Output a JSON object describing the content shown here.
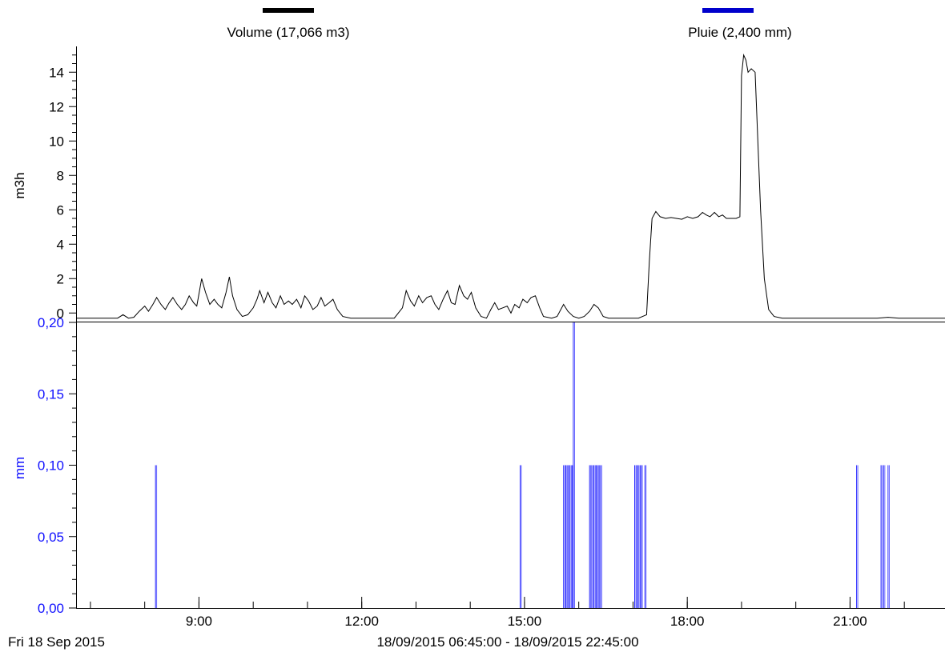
{
  "legend": [
    {
      "label": "Volume (17,066 m3)",
      "color": "#000000"
    },
    {
      "label": "Pluie (2,400 mm)",
      "color": "#0000cc"
    }
  ],
  "footer": {
    "date": "Fri 18 Sep 2015",
    "range": "18/09/2015 06:45:00 - 18/09/2015 22:45:00"
  },
  "chart_data": [
    {
      "type": "line",
      "series_name": "Volume (17,066 m3)",
      "ylabel": "m3h",
      "ylim": [
        -0.5,
        15.5
      ],
      "yticks": [
        0,
        2,
        4,
        6,
        8,
        10,
        12,
        14
      ],
      "ytick_labels": [
        "0",
        "2",
        "4",
        "6",
        "8",
        "10",
        "12",
        "14"
      ],
      "x_unit": "hour of day",
      "xlim": [
        6.75,
        22.75
      ],
      "color": "#000000",
      "points": [
        [
          6.75,
          -0.3
        ],
        [
          7.5,
          -0.3
        ],
        [
          7.6,
          -0.1
        ],
        [
          7.7,
          -0.3
        ],
        [
          7.8,
          -0.25
        ],
        [
          7.9,
          0.1
        ],
        [
          8.0,
          0.4
        ],
        [
          8.07,
          0.1
        ],
        [
          8.15,
          0.5
        ],
        [
          8.22,
          0.9
        ],
        [
          8.3,
          0.5
        ],
        [
          8.38,
          0.2
        ],
        [
          8.45,
          0.6
        ],
        [
          8.52,
          0.9
        ],
        [
          8.6,
          0.5
        ],
        [
          8.68,
          0.2
        ],
        [
          8.75,
          0.5
        ],
        [
          8.82,
          1.0
        ],
        [
          8.9,
          0.6
        ],
        [
          8.96,
          0.4
        ],
        [
          9.0,
          1.1
        ],
        [
          9.05,
          2.0
        ],
        [
          9.12,
          1.2
        ],
        [
          9.2,
          0.5
        ],
        [
          9.28,
          0.8
        ],
        [
          9.35,
          0.5
        ],
        [
          9.42,
          0.3
        ],
        [
          9.5,
          1.2
        ],
        [
          9.56,
          2.1
        ],
        [
          9.62,
          1.0
        ],
        [
          9.7,
          0.2
        ],
        [
          9.8,
          -0.2
        ],
        [
          9.9,
          -0.1
        ],
        [
          10.0,
          0.3
        ],
        [
          10.07,
          0.8
        ],
        [
          10.12,
          1.3
        ],
        [
          10.2,
          0.6
        ],
        [
          10.27,
          1.2
        ],
        [
          10.35,
          0.6
        ],
        [
          10.42,
          0.3
        ],
        [
          10.5,
          1.0
        ],
        [
          10.57,
          0.5
        ],
        [
          10.65,
          0.7
        ],
        [
          10.72,
          0.5
        ],
        [
          10.8,
          0.8
        ],
        [
          10.88,
          0.3
        ],
        [
          10.95,
          1.0
        ],
        [
          11.02,
          0.7
        ],
        [
          11.1,
          0.2
        ],
        [
          11.18,
          0.4
        ],
        [
          11.25,
          0.9
        ],
        [
          11.32,
          0.4
        ],
        [
          11.4,
          0.6
        ],
        [
          11.47,
          0.8
        ],
        [
          11.55,
          0.2
        ],
        [
          11.65,
          -0.2
        ],
        [
          11.8,
          -0.3
        ],
        [
          12.6,
          -0.3
        ],
        [
          12.75,
          0.3
        ],
        [
          12.82,
          1.3
        ],
        [
          12.9,
          0.7
        ],
        [
          12.97,
          0.4
        ],
        [
          13.05,
          1.0
        ],
        [
          13.12,
          0.6
        ],
        [
          13.2,
          0.9
        ],
        [
          13.28,
          1.0
        ],
        [
          13.35,
          0.5
        ],
        [
          13.42,
          0.2
        ],
        [
          13.5,
          0.8
        ],
        [
          13.58,
          1.3
        ],
        [
          13.65,
          0.6
        ],
        [
          13.72,
          0.5
        ],
        [
          13.8,
          1.6
        ],
        [
          13.88,
          1.0
        ],
        [
          13.95,
          0.8
        ],
        [
          14.02,
          1.2
        ],
        [
          14.1,
          0.3
        ],
        [
          14.2,
          -0.2
        ],
        [
          14.3,
          -0.3
        ],
        [
          14.38,
          0.2
        ],
        [
          14.45,
          0.6
        ],
        [
          14.52,
          0.2
        ],
        [
          14.6,
          0.3
        ],
        [
          14.68,
          0.4
        ],
        [
          14.75,
          0.0
        ],
        [
          14.82,
          0.5
        ],
        [
          14.9,
          0.3
        ],
        [
          14.97,
          0.8
        ],
        [
          15.05,
          0.6
        ],
        [
          15.12,
          0.9
        ],
        [
          15.2,
          1.0
        ],
        [
          15.28,
          0.3
        ],
        [
          15.35,
          -0.2
        ],
        [
          15.5,
          -0.3
        ],
        [
          15.6,
          -0.2
        ],
        [
          15.72,
          0.5
        ],
        [
          15.8,
          0.1
        ],
        [
          15.9,
          -0.2
        ],
        [
          16.0,
          -0.3
        ],
        [
          16.1,
          -0.2
        ],
        [
          16.2,
          0.1
        ],
        [
          16.28,
          0.5
        ],
        [
          16.36,
          0.3
        ],
        [
          16.45,
          -0.2
        ],
        [
          16.55,
          -0.3
        ],
        [
          17.1,
          -0.3
        ],
        [
          17.25,
          -0.1
        ],
        [
          17.3,
          3.0
        ],
        [
          17.35,
          5.5
        ],
        [
          17.42,
          5.9
        ],
        [
          17.5,
          5.6
        ],
        [
          17.6,
          5.5
        ],
        [
          17.7,
          5.55
        ],
        [
          17.8,
          5.5
        ],
        [
          17.9,
          5.45
        ],
        [
          18.0,
          5.6
        ],
        [
          18.1,
          5.5
        ],
        [
          18.2,
          5.6
        ],
        [
          18.28,
          5.85
        ],
        [
          18.35,
          5.7
        ],
        [
          18.42,
          5.6
        ],
        [
          18.5,
          5.85
        ],
        [
          18.58,
          5.6
        ],
        [
          18.65,
          5.7
        ],
        [
          18.72,
          5.5
        ],
        [
          18.8,
          5.5
        ],
        [
          18.9,
          5.5
        ],
        [
          18.97,
          5.6
        ],
        [
          19.0,
          13.8
        ],
        [
          19.04,
          15.0
        ],
        [
          19.08,
          14.7
        ],
        [
          19.12,
          14.0
        ],
        [
          19.18,
          14.2
        ],
        [
          19.25,
          14.0
        ],
        [
          19.3,
          10.0
        ],
        [
          19.35,
          6.0
        ],
        [
          19.42,
          2.0
        ],
        [
          19.5,
          0.2
        ],
        [
          19.6,
          -0.2
        ],
        [
          19.75,
          -0.3
        ],
        [
          21.5,
          -0.3
        ],
        [
          21.7,
          -0.25
        ],
        [
          21.9,
          -0.3
        ],
        [
          22.75,
          -0.3
        ]
      ]
    },
    {
      "type": "bar",
      "series_name": "Pluie (2,400 mm)",
      "ylabel": "mm",
      "ylim": [
        0.0,
        0.2
      ],
      "yticks": [
        0.0,
        0.05,
        0.1,
        0.15,
        0.2
      ],
      "ytick_labels": [
        "0,00",
        "0,05",
        "0,10",
        "0,15",
        "0,20"
      ],
      "x_unit": "hour of day",
      "xlim": [
        6.75,
        22.75
      ],
      "xticks": [
        9,
        12,
        15,
        18,
        21
      ],
      "xtick_labels": [
        "9:00",
        "12:00",
        "15:00",
        "18:00",
        "21:00"
      ],
      "color": "#0000cc",
      "points": [
        [
          8.2,
          0.1
        ],
        [
          14.92,
          0.1
        ],
        [
          15.72,
          0.1
        ],
        [
          15.76,
          0.1
        ],
        [
          15.8,
          0.1
        ],
        [
          15.84,
          0.1
        ],
        [
          15.88,
          0.1
        ],
        [
          15.9,
          0.2
        ],
        [
          16.2,
          0.1
        ],
        [
          16.24,
          0.1
        ],
        [
          16.28,
          0.1
        ],
        [
          16.32,
          0.1
        ],
        [
          16.36,
          0.1
        ],
        [
          16.4,
          0.1
        ],
        [
          17.03,
          0.1
        ],
        [
          17.07,
          0.1
        ],
        [
          17.11,
          0.1
        ],
        [
          17.15,
          0.1
        ],
        [
          17.22,
          0.1
        ],
        [
          21.12,
          0.1
        ],
        [
          21.57,
          0.1
        ],
        [
          21.62,
          0.1
        ],
        [
          21.7,
          0.1
        ]
      ]
    }
  ]
}
